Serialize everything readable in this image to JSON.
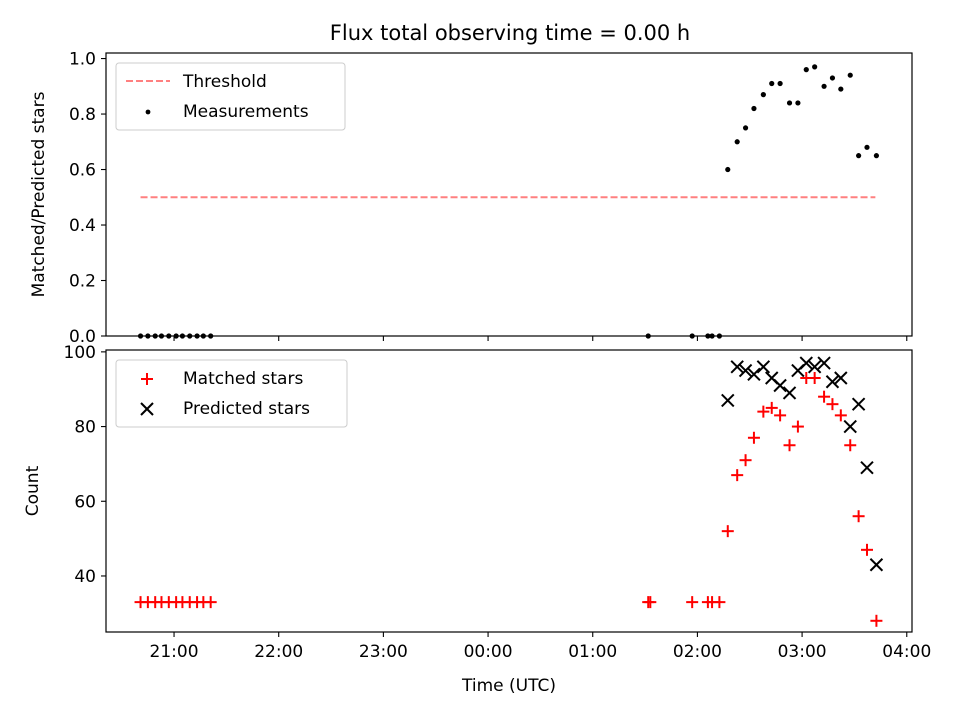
{
  "title": "Flux total observing time = 0.00 h",
  "xlabel": "Time (UTC)",
  "colors": {
    "threshold": "#ff8080",
    "measurements": "#000000",
    "matched": "#ff0000",
    "predicted": "#000000",
    "legend_border": "#cccccc"
  },
  "chart_data": [
    {
      "type": "scatter",
      "ylabel": "Matched/Predicted stars",
      "x_unit": "hours after 00:00 UTC",
      "xlim": [
        -3.65,
        4.05
      ],
      "ylim": [
        0.0,
        1.02
      ],
      "yticks": [
        0.0,
        0.2,
        0.4,
        0.6,
        0.8,
        1.0
      ],
      "ytick_labels": [
        "0.0",
        "0.2",
        "0.4",
        "0.6",
        "0.8",
        "1.0"
      ],
      "legend_position": "upper left",
      "series": [
        {
          "name": "Threshold",
          "kind": "dashed-line",
          "x": [
            -3.32,
            3.7
          ],
          "y": [
            0.5,
            0.5
          ]
        },
        {
          "name": "Measurements",
          "kind": "dot",
          "x": [
            -3.32,
            -3.25,
            -3.18,
            -3.12,
            -3.05,
            -2.98,
            -2.92,
            -2.85,
            -2.78,
            -2.72,
            -2.65,
            1.53,
            1.95,
            2.1,
            2.14,
            2.21,
            2.29,
            2.38,
            2.46,
            2.54,
            2.63,
            2.71,
            2.79,
            2.88,
            2.96,
            3.04,
            3.12,
            3.21,
            3.29,
            3.37,
            3.46,
            3.54,
            3.62,
            3.71
          ],
          "y": [
            0.0,
            0.0,
            0.0,
            0.0,
            0.0,
            0.0,
            0.0,
            0.0,
            0.0,
            0.0,
            0.0,
            0.0,
            0.0,
            0.0,
            0.0,
            0.0,
            0.6,
            0.7,
            0.75,
            0.82,
            0.87,
            0.91,
            0.91,
            0.84,
            0.84,
            0.96,
            0.97,
            0.9,
            0.93,
            0.89,
            0.94,
            0.65,
            0.68,
            0.65
          ]
        }
      ]
    },
    {
      "type": "scatter",
      "ylabel": "Count",
      "x_unit": "hours after 00:00 UTC",
      "xlim": [
        -3.65,
        4.05
      ],
      "ylim": [
        25,
        100.5
      ],
      "yticks": [
        40,
        60,
        80,
        100
      ],
      "ytick_labels": [
        "40",
        "60",
        "80",
        "100"
      ],
      "xticks": [
        -3,
        -2,
        -1,
        0,
        1,
        2,
        3,
        4
      ],
      "xtick_labels": [
        "21:00",
        "22:00",
        "23:00",
        "00:00",
        "01:00",
        "02:00",
        "03:00",
        "04:00"
      ],
      "legend_position": "upper left",
      "series": [
        {
          "name": "Matched stars",
          "kind": "plus",
          "x": [
            -3.32,
            -3.25,
            -3.18,
            -3.12,
            -3.05,
            -2.98,
            -2.92,
            -2.85,
            -2.78,
            -2.72,
            -2.65,
            1.53,
            1.55,
            1.95,
            2.1,
            2.14,
            2.21,
            2.29,
            2.38,
            2.46,
            2.54,
            2.63,
            2.71,
            2.79,
            2.88,
            2.96,
            3.04,
            3.12,
            3.21,
            3.29,
            3.37,
            3.46,
            3.54,
            3.62,
            3.71
          ],
          "y": [
            33,
            33,
            33,
            33,
            33,
            33,
            33,
            33,
            33,
            33,
            33,
            33,
            33,
            33,
            33,
            33,
            33,
            52,
            67,
            71,
            77,
            84,
            85,
            83,
            75,
            80,
            93,
            93,
            88,
            86,
            83,
            75,
            56,
            47,
            28
          ]
        },
        {
          "name": "Predicted stars",
          "kind": "x",
          "x": [
            2.29,
            2.38,
            2.46,
            2.54,
            2.63,
            2.71,
            2.79,
            2.88,
            2.96,
            3.04,
            3.12,
            3.21,
            3.29,
            3.37,
            3.46,
            3.54,
            3.62,
            3.71
          ],
          "y": [
            87,
            96,
            95,
            94,
            96,
            93,
            91,
            89,
            95,
            97,
            96,
            97,
            92,
            93,
            80,
            86,
            69,
            43
          ]
        }
      ]
    }
  ]
}
